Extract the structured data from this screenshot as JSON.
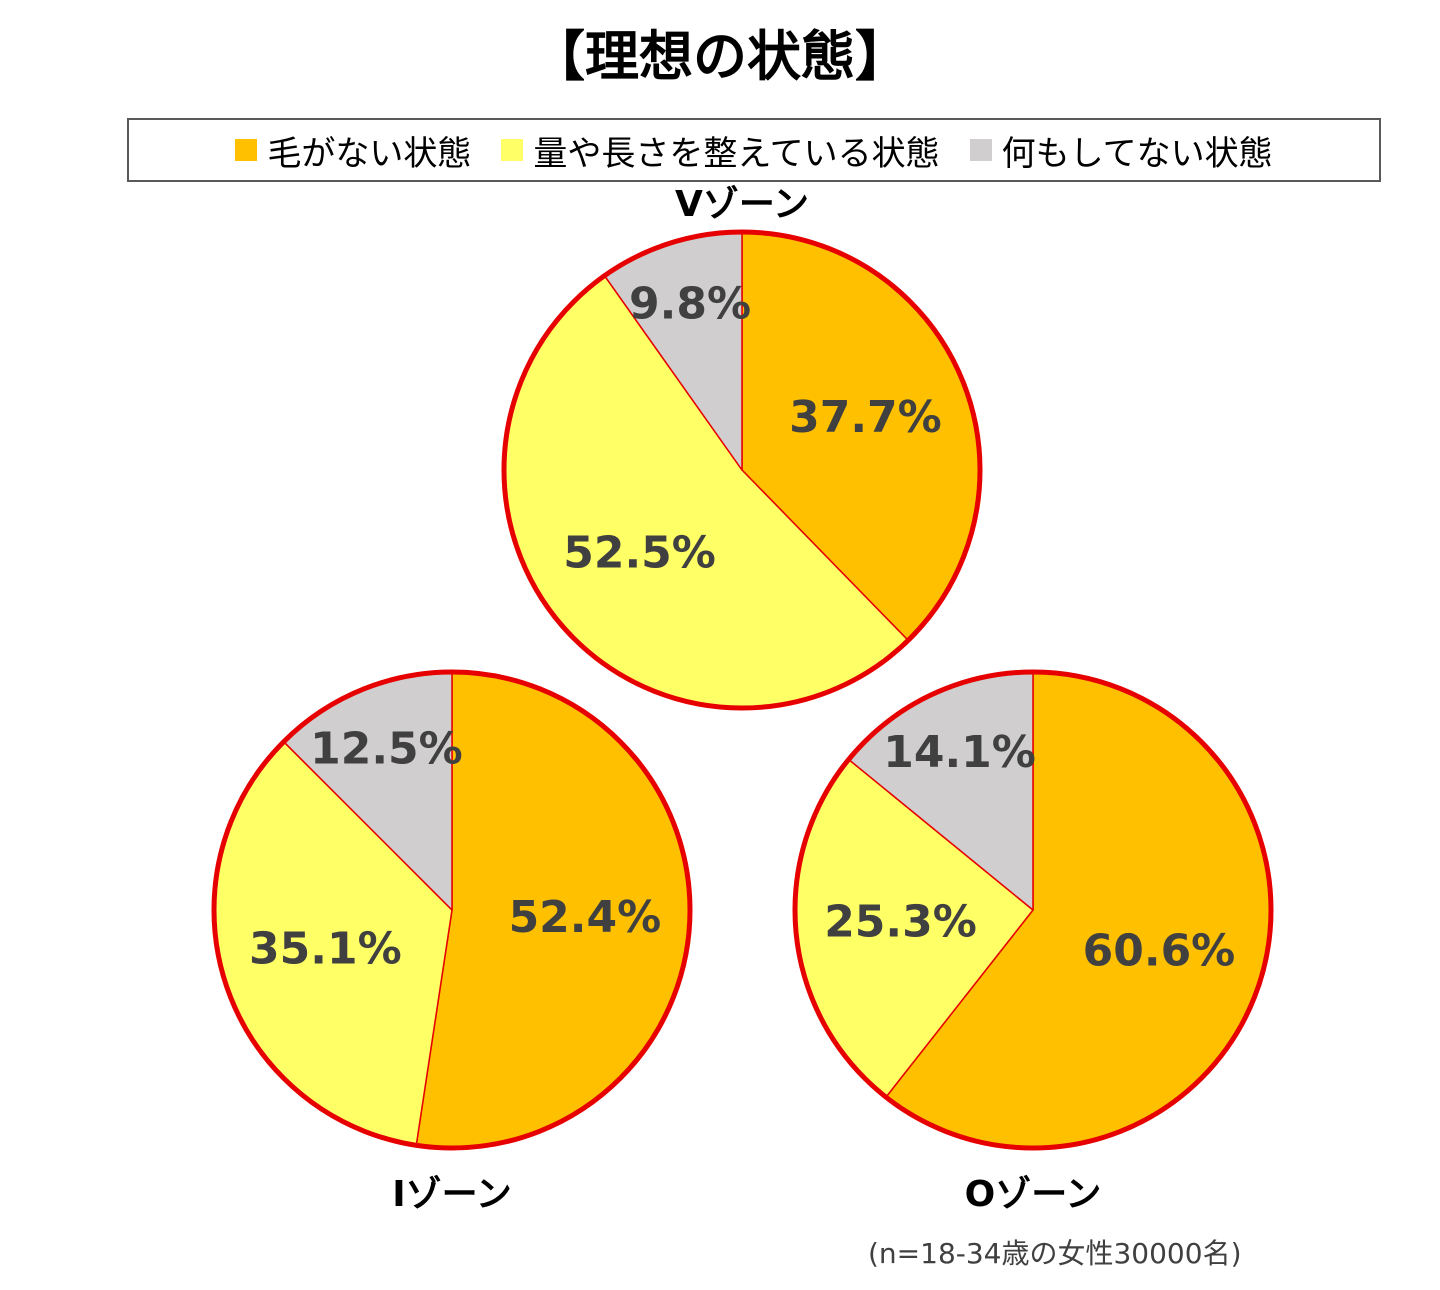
{
  "title": "【理想の状態】",
  "legend": [
    {
      "label": "毛がない状態",
      "color": "#FFC000"
    },
    {
      "label": "量や長さを整えている状態",
      "color": "#FFFF66"
    },
    {
      "label": "何もしてない状態",
      "color": "#D0CECE"
    }
  ],
  "footnote": "(n=18-34歳の女性30000名)",
  "chart_data": [
    {
      "type": "pie",
      "title": "Vゾーン",
      "categories": [
        "毛がない状態",
        "量や長さを整えている状態",
        "何もしてない状態"
      ],
      "values": [
        37.7,
        52.5,
        9.8
      ],
      "labels": [
        "37.7%",
        "52.5%",
        "9.8%"
      ]
    },
    {
      "type": "pie",
      "title": "Iゾーン",
      "categories": [
        "毛がない状態",
        "量や長さを整えている状態",
        "何もしてない状態"
      ],
      "values": [
        52.4,
        35.1,
        12.5
      ],
      "labels": [
        "52.4%",
        "35.1%",
        "12.5%"
      ]
    },
    {
      "type": "pie",
      "title": "Oゾーン",
      "categories": [
        "毛がない状態",
        "量や長さを整えている状態",
        "何もしてない状態"
      ],
      "values": [
        60.6,
        25.3,
        14.1
      ],
      "labels": [
        "60.6%",
        "25.3%",
        "14.1%"
      ]
    }
  ],
  "colors": {
    "slices": [
      "#FFC000",
      "#FFFF66",
      "#D0CECE"
    ],
    "outline": "#E60000",
    "label": "#404040"
  }
}
